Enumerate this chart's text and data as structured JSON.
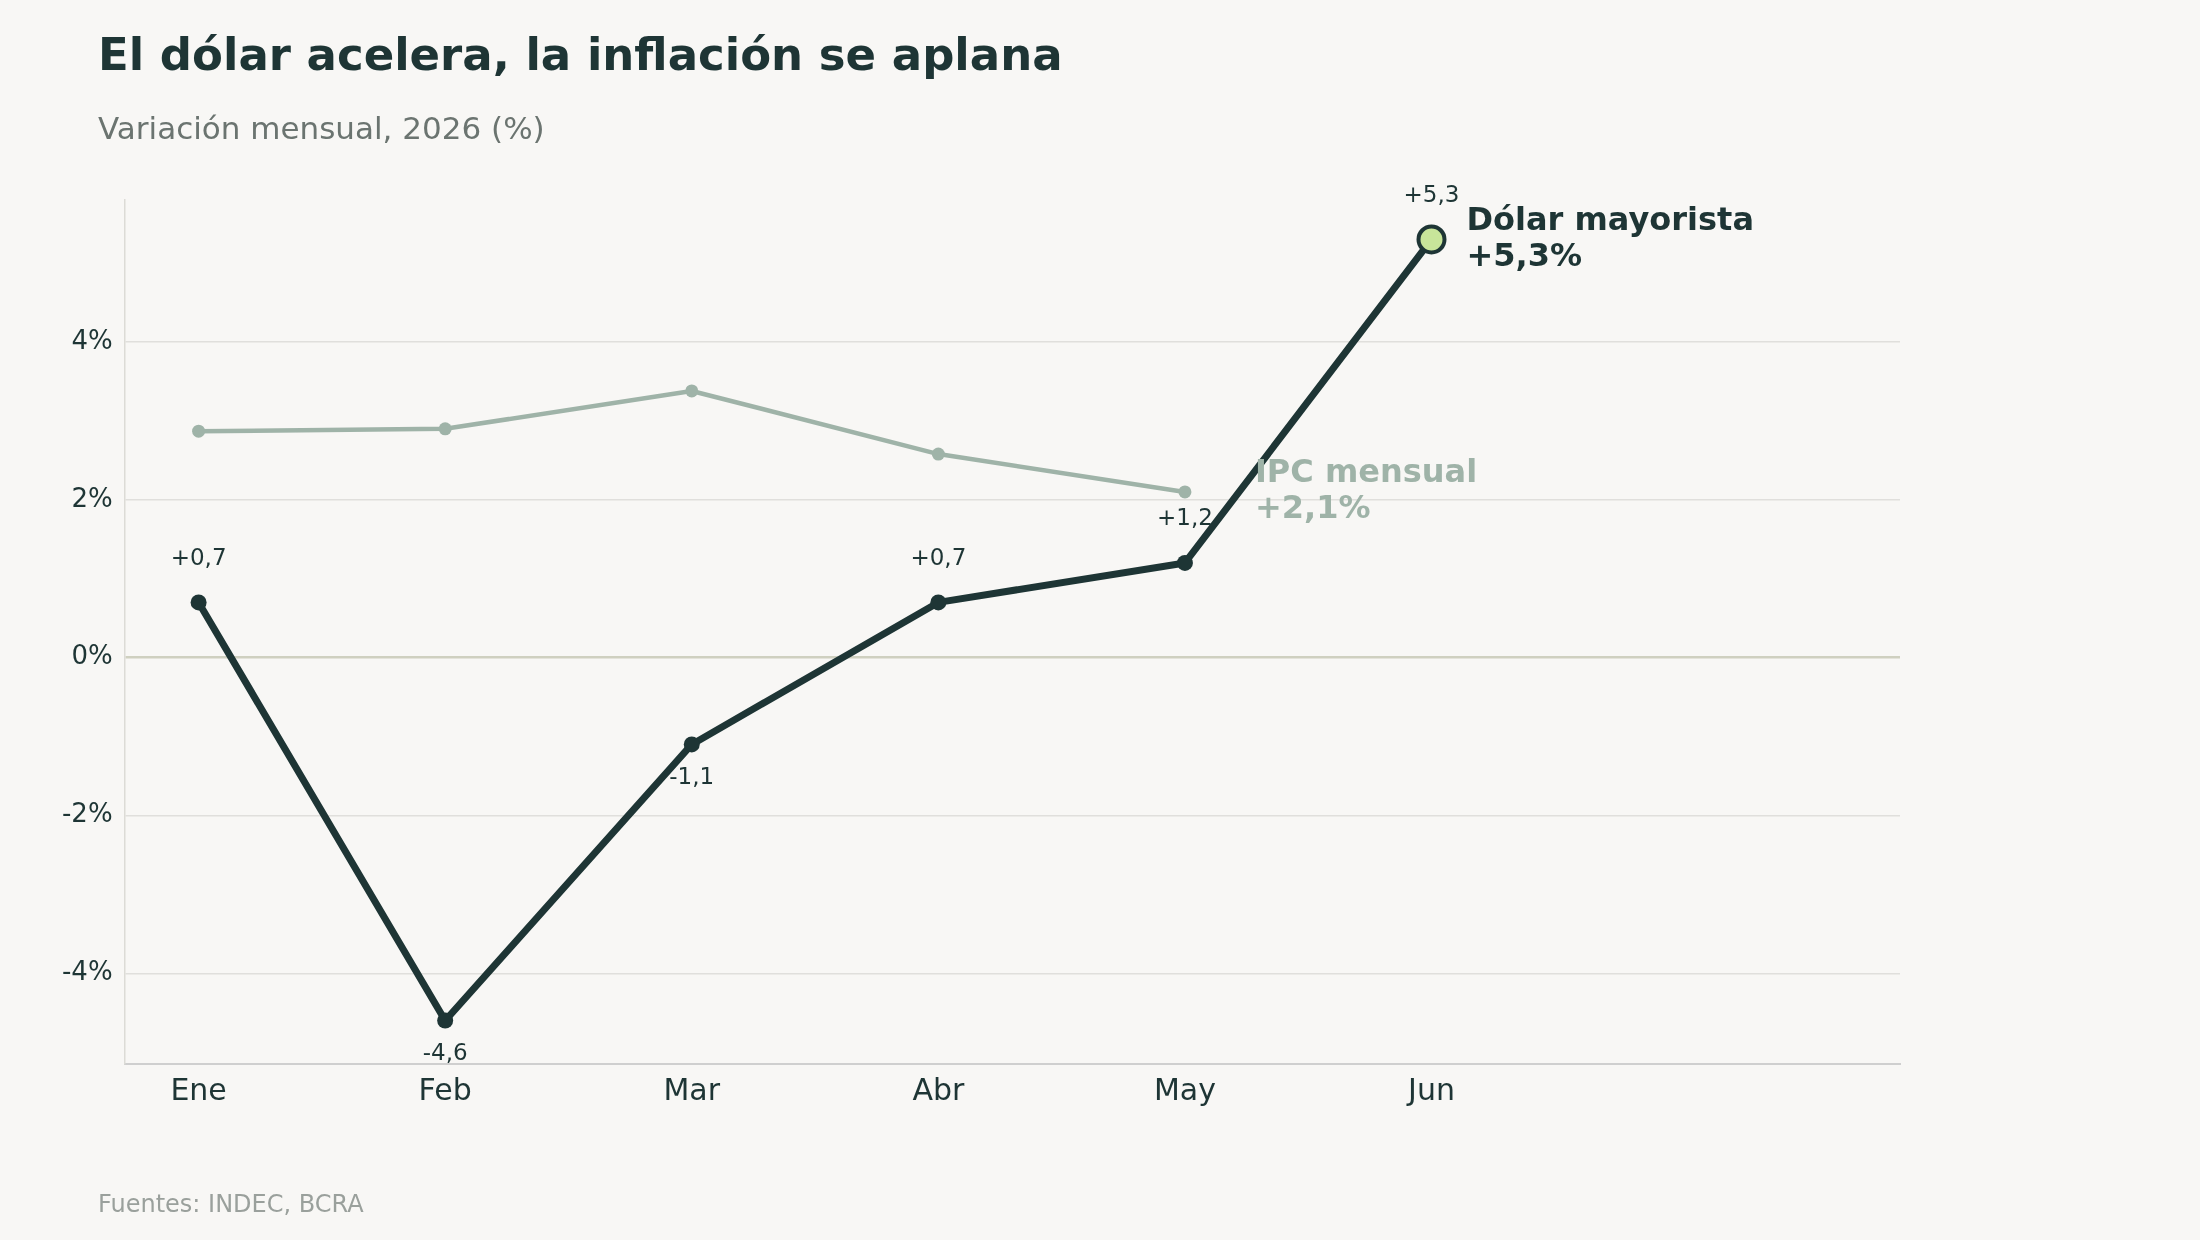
{
  "chart_data": {
    "type": "line",
    "title": "El dólar acelera, la inflación se aplana",
    "subtitle": "Variación mensual, 2026 (%)",
    "categories": [
      "Ene",
      "Feb",
      "Mar",
      "Abr",
      "May",
      "Jun"
    ],
    "series": [
      {
        "name": "IPC mensual",
        "color": "#9fb3a8",
        "values": [
          2.87,
          2.9,
          3.38,
          2.58,
          2.1,
          null
        ]
      },
      {
        "name": "Dólar mayorista",
        "color": "#1e3535",
        "colors": [
          "#1e3535",
          "#1e3535",
          "#1e3535",
          "#1e3535",
          "#1e3535",
          "#c8e59a"
        ],
        "values": [
          0.7,
          -4.6,
          -1.1,
          0.7,
          1.2,
          5.3
        ],
        "value_labels": [
          "+0,7",
          "-4,6",
          "-1,1",
          "+0,7",
          "+1,2",
          "+5,3"
        ]
      }
    ],
    "annotations": [
      {
        "text": "+2,1%",
        "x": "May",
        "y": 2.1
      },
      {
        "text": "+5,3%",
        "x": "Jun",
        "y": 5.3
      },
      "Fuentes: INDEC, BCRA"
    ],
    "ylim": [
      -5.15,
      5.8
    ],
    "yticks": [
      {
        "value": -4,
        "label": "-4%"
      },
      {
        "value": -2,
        "label": "-2%"
      },
      {
        "value": 0,
        "label": "0%"
      },
      {
        "value": 2,
        "label": "2%"
      },
      {
        "value": 4,
        "label": "4%"
      }
    ],
    "grid": "y",
    "legend": false,
    "marker": "circle",
    "line_style": "solid"
  }
}
